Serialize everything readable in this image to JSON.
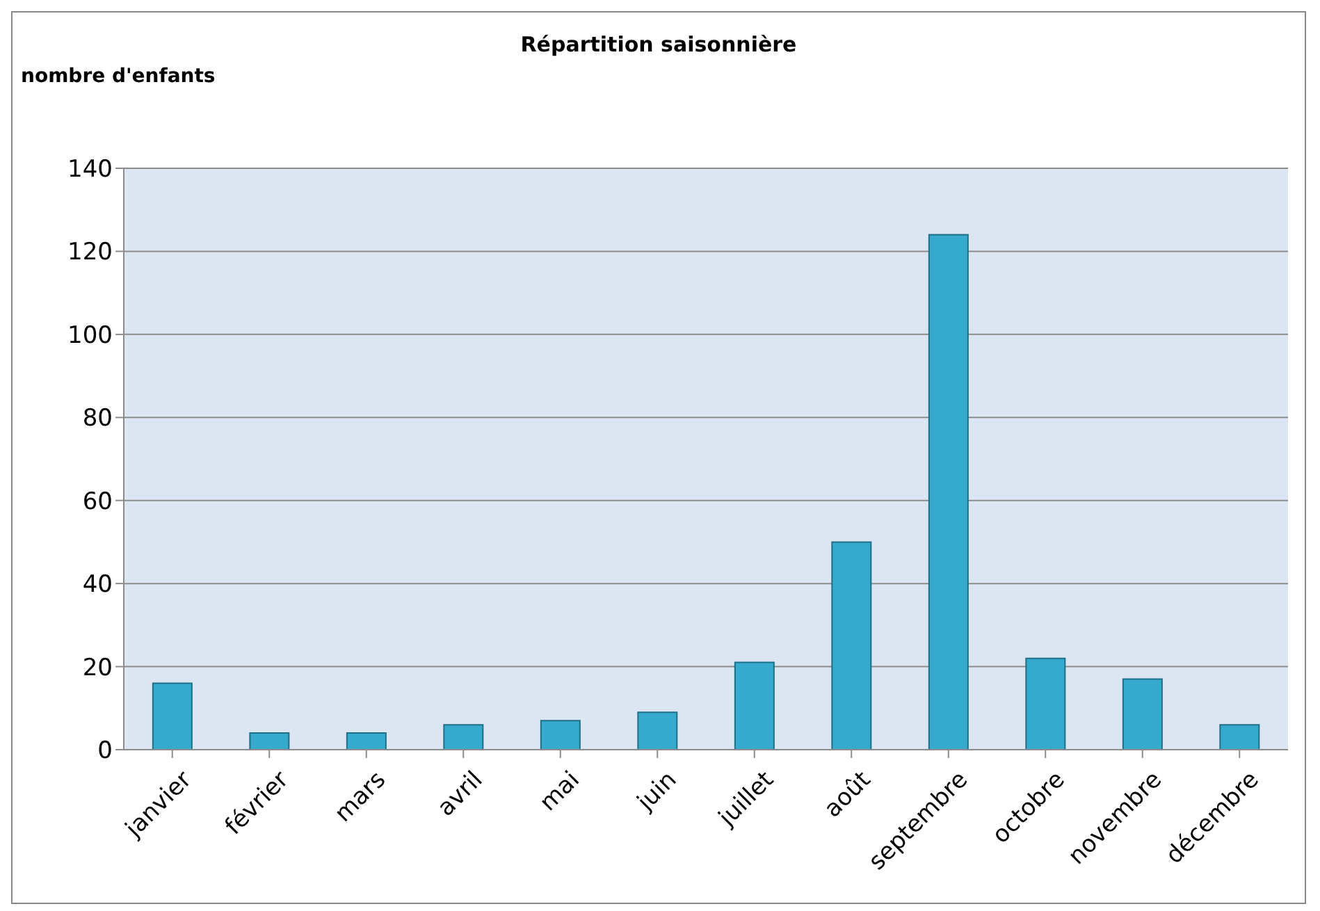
{
  "chart_data": {
    "type": "bar",
    "title": "Répartition saisonnière",
    "ylabel": "nombre d'enfants",
    "categories": [
      "janvier",
      "février",
      "mars",
      "avril",
      "mai",
      "juin",
      "juillet",
      "août",
      "septembre",
      "octobre",
      "novembre",
      "décembre"
    ],
    "values": [
      16,
      4,
      4,
      6,
      7,
      9,
      21,
      50,
      124,
      22,
      17,
      6
    ],
    "color": "#36aacc",
    "ylim": [
      0,
      140
    ],
    "yticks": [
      0,
      20,
      40,
      60,
      80,
      100,
      120,
      140
    ],
    "grid": "y"
  }
}
